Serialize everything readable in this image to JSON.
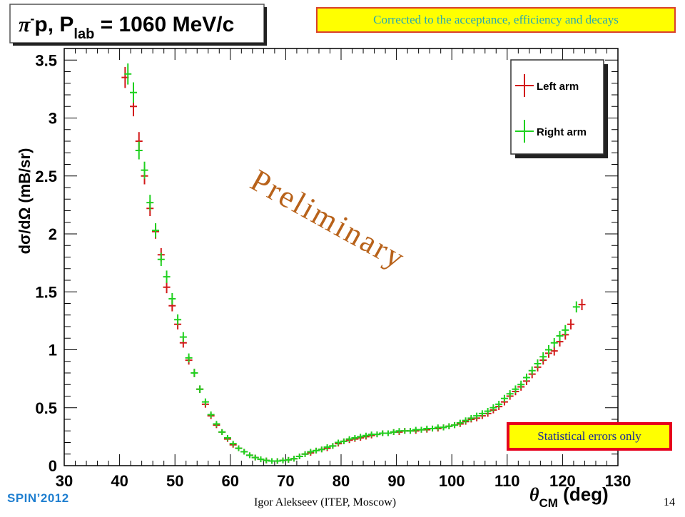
{
  "slide": {
    "footer_conference": "SPIN’2012",
    "footer_author": "Igor Alekseev (ITEP, Moscow)",
    "page_number": "14",
    "note_corrected": "Corrected to the acceptance, efficiency and decays",
    "note_statistical": "Statistical errors only",
    "watermark": "Preliminary"
  },
  "colors": {
    "left_arm": "#d21a1a",
    "right_arm": "#1fd11f",
    "watermark": "#b8621a",
    "note_fill": "#ffff00"
  },
  "chart_data": {
    "type": "scatter",
    "title": {
      "reaction": "π",
      "charge": "-",
      "rest": "p, P",
      "subscript": "lab",
      "value": " = 1060 MeV/c"
    },
    "ylabel": "dσ/dΩ (mB/sr)",
    "xlabel": {
      "symbol": "θ",
      "subscript": "CM",
      "unit": " (deg)"
    },
    "xlim": [
      30,
      130
    ],
    "ylim": [
      0,
      3.6
    ],
    "x_ticks": [
      "30",
      "40",
      "50",
      "60",
      "70",
      "80",
      "90",
      "100",
      "110",
      "120",
      "130"
    ],
    "y_ticks": [
      "0",
      "0.5",
      "1",
      "1.5",
      "2",
      "2.5",
      "3",
      "3.5"
    ],
    "legend_position": "top-right",
    "series": [
      {
        "name": "Left arm",
        "x": [
          41,
          42.5,
          43.5,
          44.5,
          45.5,
          46.5,
          47.5,
          48.5,
          49.5,
          50.5,
          51.5,
          52.5,
          53.5,
          54.5,
          55.5,
          56.5,
          57.5,
          58.5,
          59.5,
          60.5,
          61.5,
          62.5,
          63.5,
          64.5,
          65.5,
          66.5,
          67.5,
          68.5,
          69.5,
          70.5,
          71.5,
          72.5,
          73.5,
          74.5,
          75.5,
          76.5,
          77.5,
          78.5,
          79.5,
          80.5,
          81.5,
          82.5,
          83.5,
          84.5,
          85.5,
          86.5,
          87.5,
          88.5,
          89.5,
          90.5,
          91.5,
          92.5,
          93.5,
          94.5,
          95.5,
          96.5,
          97.5,
          98.5,
          99.5,
          100.5,
          101.5,
          102.5,
          103.5,
          104.5,
          105.5,
          106.5,
          107.5,
          108.5,
          109.5,
          110.5,
          111.5,
          112.5,
          113.5,
          114.5,
          115.5,
          116.5,
          117.5,
          118.5,
          119.5,
          120.5,
          121.5,
          123.5
        ],
        "y": [
          3.35,
          3.1,
          2.8,
          2.5,
          2.22,
          2.02,
          1.82,
          1.54,
          1.38,
          1.22,
          1.06,
          0.91,
          0.8,
          0.66,
          0.53,
          0.43,
          0.35,
          0.29,
          0.23,
          0.18,
          0.15,
          0.12,
          0.09,
          0.07,
          0.055,
          0.045,
          0.04,
          0.04,
          0.045,
          0.05,
          0.06,
          0.08,
          0.1,
          0.11,
          0.13,
          0.14,
          0.15,
          0.17,
          0.19,
          0.21,
          0.22,
          0.23,
          0.24,
          0.25,
          0.26,
          0.27,
          0.28,
          0.28,
          0.29,
          0.29,
          0.3,
          0.3,
          0.3,
          0.31,
          0.31,
          0.32,
          0.32,
          0.33,
          0.34,
          0.35,
          0.36,
          0.38,
          0.4,
          0.41,
          0.43,
          0.45,
          0.48,
          0.51,
          0.55,
          0.6,
          0.64,
          0.68,
          0.73,
          0.79,
          0.85,
          0.91,
          0.97,
          0.99,
          1.07,
          1.13,
          1.22,
          1.39
        ]
      },
      {
        "name": "Right arm",
        "x": [
          41.5,
          42.5,
          43.5,
          44.5,
          45.5,
          46.5,
          47.5,
          48.5,
          49.5,
          50.5,
          51.5,
          52.5,
          53.5,
          54.5,
          55.5,
          56.5,
          57.5,
          58.5,
          59.5,
          60.5,
          61.5,
          62.5,
          63.5,
          64.5,
          65.5,
          66.5,
          67.5,
          68.5,
          69.5,
          70.5,
          71.5,
          72.5,
          73.5,
          74.5,
          75.5,
          76.5,
          77.5,
          78.5,
          79.5,
          80.5,
          81.5,
          82.5,
          83.5,
          84.5,
          85.5,
          86.5,
          87.5,
          88.5,
          89.5,
          90.5,
          91.5,
          92.5,
          93.5,
          94.5,
          95.5,
          96.5,
          97.5,
          98.5,
          99.5,
          100.5,
          101.5,
          102.5,
          103.5,
          104.5,
          105.5,
          106.5,
          107.5,
          108.5,
          109.5,
          110.5,
          111.5,
          112.5,
          113.5,
          114.5,
          115.5,
          116.5,
          117.5,
          118.5,
          119.5,
          120.5,
          122.5
        ],
        "y": [
          3.38,
          3.22,
          2.72,
          2.55,
          2.27,
          2.03,
          1.78,
          1.63,
          1.44,
          1.26,
          1.11,
          0.93,
          0.8,
          0.66,
          0.55,
          0.44,
          0.36,
          0.29,
          0.24,
          0.19,
          0.15,
          0.12,
          0.09,
          0.07,
          0.055,
          0.045,
          0.04,
          0.04,
          0.045,
          0.05,
          0.06,
          0.08,
          0.1,
          0.12,
          0.13,
          0.14,
          0.16,
          0.17,
          0.2,
          0.21,
          0.23,
          0.24,
          0.25,
          0.26,
          0.27,
          0.27,
          0.28,
          0.28,
          0.29,
          0.3,
          0.3,
          0.3,
          0.31,
          0.31,
          0.32,
          0.32,
          0.33,
          0.33,
          0.34,
          0.35,
          0.37,
          0.39,
          0.41,
          0.43,
          0.45,
          0.47,
          0.5,
          0.53,
          0.58,
          0.62,
          0.66,
          0.7,
          0.76,
          0.82,
          0.88,
          0.94,
          1.0,
          1.06,
          1.12,
          1.17,
          1.37
        ]
      }
    ]
  }
}
